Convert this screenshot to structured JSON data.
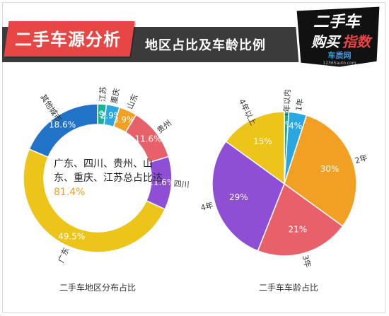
{
  "header": {
    "title": "二手车源分析",
    "subtitle": "地区占比及车龄比例"
  },
  "logo": {
    "line1": "二手车",
    "line2a": "购买",
    "line2b": "指数",
    "brand": "车质网",
    "brand_url": "12365auto.com"
  },
  "note": {
    "text": "广东、四川、贵州、山东、重庆、江苏总占比达",
    "highlight": "81.4%"
  },
  "colors": {
    "blue_dark": "#2173c8",
    "yellow": "#ecc41a",
    "purple": "#8e4fd6",
    "red": "#e8606a",
    "orange": "#f2a023",
    "teal": "#14b29a",
    "light_blue": "#2aa7e0"
  },
  "chart_data": [
    {
      "type": "pie",
      "variant": "donut",
      "caption": "二手车地区分布占比",
      "slices": [
        {
          "label": "江苏",
          "value": 1.9,
          "value_text": "1.9%",
          "color": "#14b29a"
        },
        {
          "label": "重庆",
          "value": 2.9,
          "value_text": "2.9%",
          "color": "#2aa7e0"
        },
        {
          "label": "山东",
          "value": 3.9,
          "value_text": "3.9%",
          "color": "#f2a023"
        },
        {
          "label": "贵州",
          "value": 11.6,
          "value_text": "11.6%",
          "color": "#e8606a"
        },
        {
          "label": "四川",
          "value": 11.6,
          "value_text": "11.6%",
          "color": "#8e4fd6"
        },
        {
          "label": "广东",
          "value": 49.5,
          "value_text": "49.5%",
          "color": "#ecc41a"
        },
        {
          "label": "其他城市",
          "value": 18.6,
          "value_text": "18.6%",
          "color": "#2173c8"
        }
      ]
    },
    {
      "type": "pie",
      "caption": "二手车车龄占比",
      "slices": [
        {
          "label": "1年以内",
          "value": 1,
          "value_text": "1%",
          "color": "#14b29a"
        },
        {
          "label": "1年",
          "value": 4,
          "value_text": "4%",
          "color": "#2aa7e0"
        },
        {
          "label": "2年",
          "value": 30,
          "value_text": "30%",
          "color": "#f2a023"
        },
        {
          "label": "3年",
          "value": 21,
          "value_text": "21%",
          "color": "#e8606a"
        },
        {
          "label": "4年",
          "value": 29,
          "value_text": "29%",
          "color": "#8e4fd6"
        },
        {
          "label": "4年以上",
          "value": 15,
          "value_text": "15%",
          "color": "#ecc41a"
        }
      ]
    }
  ]
}
